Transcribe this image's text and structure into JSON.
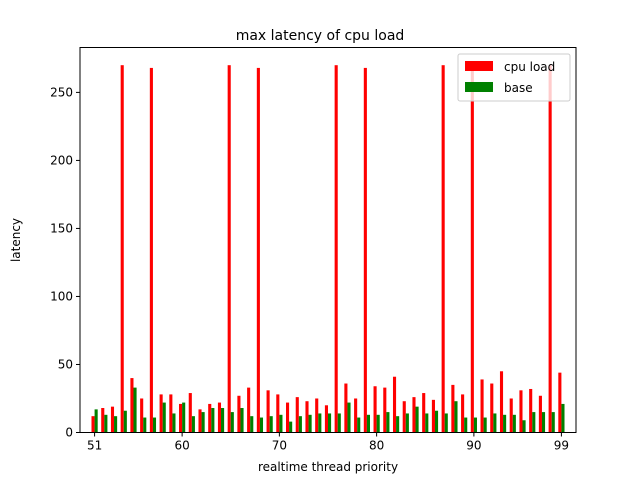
{
  "chart_data": {
    "type": "bar",
    "title": "max latency of cpu load",
    "xlabel": "realtime thread priority",
    "ylabel": "latency",
    "x": [
      51,
      52,
      53,
      54,
      55,
      56,
      57,
      58,
      59,
      60,
      61,
      62,
      63,
      64,
      65,
      66,
      67,
      68,
      69,
      70,
      71,
      72,
      73,
      74,
      75,
      76,
      77,
      78,
      79,
      80,
      81,
      82,
      83,
      84,
      85,
      86,
      87,
      88,
      89,
      90,
      91,
      92,
      93,
      94,
      95,
      96,
      97,
      98,
      99
    ],
    "xticks": [
      51,
      60,
      70,
      80,
      90,
      99
    ],
    "yticks": [
      0,
      50,
      100,
      150,
      200,
      250
    ],
    "xlim": [
      49.5,
      100.5
    ],
    "ylim": [
      0,
      283
    ],
    "legend_position": "top-right",
    "series": [
      {
        "name": "cpu load",
        "color": "#ff0000",
        "values": [
          12,
          18,
          19,
          270,
          40,
          25,
          268,
          28,
          28,
          21,
          29,
          17,
          21,
          22,
          270,
          27,
          33,
          268,
          31,
          28,
          22,
          26,
          23,
          25,
          20,
          270,
          36,
          25,
          268,
          34,
          33,
          41,
          23,
          26,
          29,
          24,
          270,
          35,
          28,
          268,
          39,
          36,
          45,
          25,
          31,
          32,
          27,
          270,
          44
        ]
      },
      {
        "name": "base",
        "color": "#008000",
        "values": [
          17,
          13,
          12,
          16,
          33,
          11,
          11,
          22,
          14,
          22,
          12,
          15,
          18,
          18,
          15,
          18,
          12,
          11,
          12,
          13,
          8,
          12,
          13,
          14,
          14,
          14,
          22,
          11,
          13,
          13,
          15,
          12,
          14,
          19,
          14,
          16,
          14,
          23,
          11,
          11,
          11,
          14,
          13,
          13,
          9,
          15,
          15,
          15,
          21
        ]
      }
    ]
  }
}
